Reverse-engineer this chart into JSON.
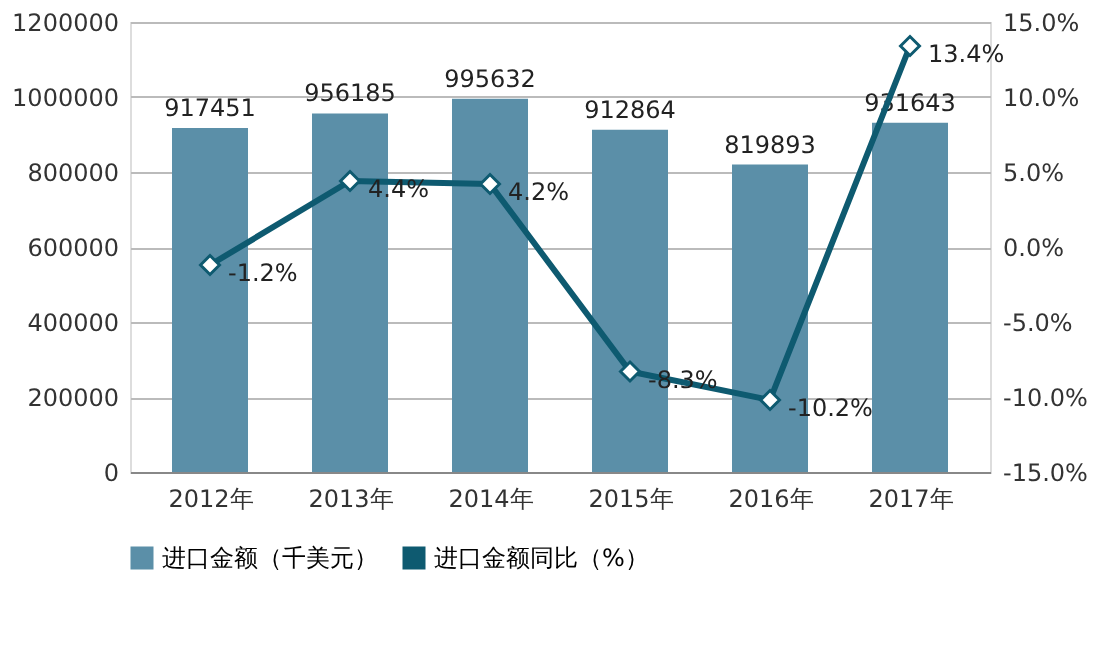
{
  "chart_data": {
    "type": "bar",
    "categories": [
      "2012年",
      "2013年",
      "2014年",
      "2015年",
      "2016年",
      "2017年"
    ],
    "series": [
      {
        "name": "进口金额（千美元）",
        "color": "#5b8fa8",
        "values": [
          917451,
          956185,
          995632,
          912864,
          819893,
          931643
        ]
      },
      {
        "name": "进口金额同比（%）",
        "type": "line",
        "axis": "y2",
        "color": "#0e5a70",
        "marker": "diamond",
        "values": [
          -1.2,
          4.4,
          4.2,
          -8.3,
          -10.2,
          13.4
        ],
        "value_labels": [
          "-1.2%",
          "4.4%",
          "4.2%",
          "-8.3%",
          "-10.2%",
          "13.4%"
        ]
      }
    ],
    "data_labels": true,
    "ylim": [
      0,
      1200000
    ],
    "yticks": [
      0,
      200000,
      400000,
      600000,
      800000,
      1000000,
      1200000
    ],
    "y2lim": [
      -15,
      15
    ],
    "y2ticks": [
      {
        "value": -15,
        "label": "-15.0%"
      },
      {
        "value": -10,
        "label": "-10.0%"
      },
      {
        "value": -5,
        "label": "-5.0%"
      },
      {
        "value": 0,
        "label": "0.0%"
      },
      {
        "value": 5,
        "label": "5.0%"
      },
      {
        "value": 10,
        "label": "10.0%"
      },
      {
        "value": 15,
        "label": "15.0%"
      }
    ],
    "grid": "y",
    "legend": "bottom"
  }
}
